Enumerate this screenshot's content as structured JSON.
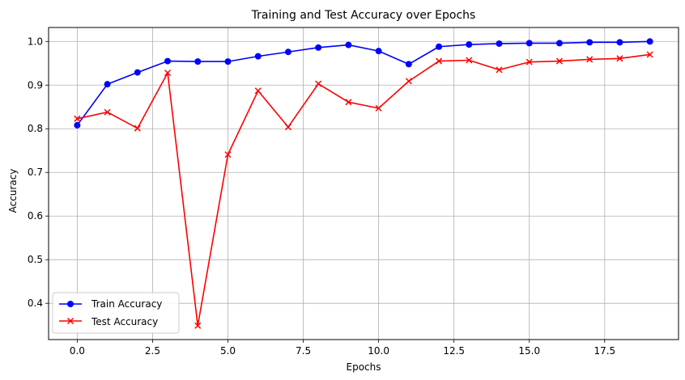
{
  "chart_data": {
    "type": "line",
    "title": "Training and Test Accuracy over Epochs",
    "xlabel": "Epochs",
    "ylabel": "Accuracy",
    "xlim": [
      -0.95,
      19.95
    ],
    "ylim": [
      0.317,
      1.032
    ],
    "xticks": [
      0.0,
      2.5,
      5.0,
      7.5,
      10.0,
      12.5,
      15.0,
      17.5
    ],
    "xtick_labels": [
      "0.0",
      "2.5",
      "5.0",
      "7.5",
      "10.0",
      "12.5",
      "15.0",
      "17.5"
    ],
    "yticks": [
      0.4,
      0.5,
      0.6,
      0.7,
      0.8,
      0.9,
      1.0
    ],
    "ytick_labels": [
      "0.4",
      "0.5",
      "0.6",
      "0.7",
      "0.8",
      "0.9",
      "1.0"
    ],
    "grid": true,
    "legend_position": "lower-left",
    "x": [
      0,
      1,
      2,
      3,
      4,
      5,
      6,
      7,
      8,
      9,
      10,
      11,
      12,
      13,
      14,
      15,
      16,
      17,
      18,
      19
    ],
    "series": [
      {
        "name": "Train Accuracy",
        "color": "#0000ff",
        "marker": "circle",
        "values": [
          0.808,
          0.902,
          0.929,
          0.955,
          0.954,
          0.954,
          0.966,
          0.976,
          0.986,
          0.992,
          0.978,
          0.948,
          0.988,
          0.993,
          0.995,
          0.996,
          0.996,
          0.998,
          0.998,
          1.0
        ]
      },
      {
        "name": "Test Accuracy",
        "color": "#ff0000",
        "marker": "x",
        "values": [
          0.823,
          0.838,
          0.801,
          0.928,
          0.349,
          0.741,
          0.887,
          0.804,
          0.903,
          0.861,
          0.847,
          0.909,
          0.955,
          0.957,
          0.935,
          0.953,
          0.955,
          0.959,
          0.961,
          0.97
        ]
      }
    ]
  }
}
